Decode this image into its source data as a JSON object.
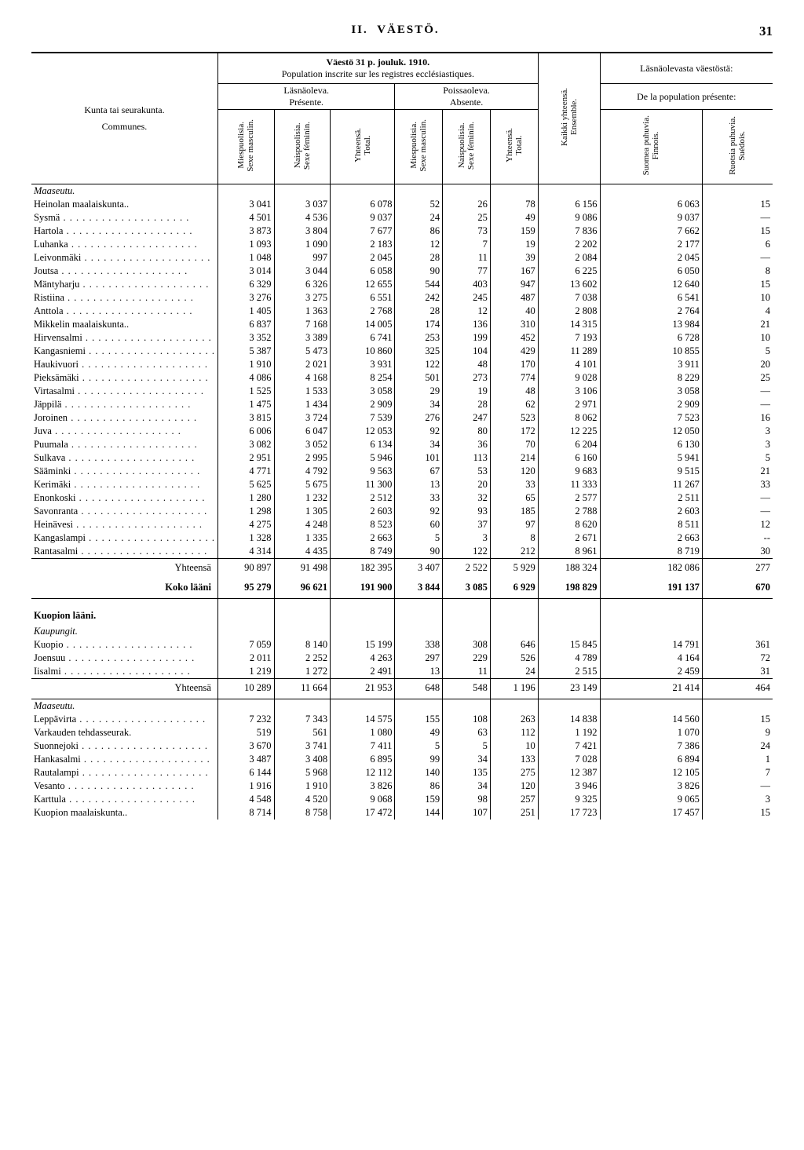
{
  "page": {
    "section": "II.",
    "title": "VÄESTÖ.",
    "number": "31"
  },
  "headers": {
    "pop_title1": "Väestö 31 p. jouluk. 1910.",
    "pop_title2": "Population inscrite sur les registres ecclésiastiques.",
    "present_fi": "Läsnäoleva.",
    "present_fr": "Présente.",
    "absent_fi": "Poissaoleva.",
    "absent_fr": "Absente.",
    "from_present_fi": "Läsnäolevasta väestöstä:",
    "from_present_fr": "De la population présente:",
    "municipality_fi": "Kunta tai seurakunta.",
    "municipality_fr": "Communes.",
    "all_fi": "Kaikki yhteensä.",
    "all_fr": "Ensemble.",
    "cols": {
      "male_fi": "Miespuolisia.",
      "male_fr": "Sexe masculin.",
      "female_fi": "Naispuolisia.",
      "female_fr": "Sexe féminin.",
      "total_fi": "Yhteensä.",
      "total_fr": "Total.",
      "finnish_fi": "Suomea puhuvia.",
      "finnish_fr": "Finnois.",
      "swedish_fi": "Ruotsia puhuvia.",
      "swedish_fr": "Suédois."
    }
  },
  "sections": [
    {
      "heading_italic": "Maaseutu.",
      "rows": [
        {
          "name": "Heinolan maalaiskunta..",
          "v": [
            "3 041",
            "3 037",
            "6 078",
            "52",
            "26",
            "78",
            "6 156",
            "6 063",
            "15"
          ]
        },
        {
          "name": "Sysmä",
          "dots": true,
          "v": [
            "4 501",
            "4 536",
            "9 037",
            "24",
            "25",
            "49",
            "9 086",
            "9 037",
            "—"
          ]
        },
        {
          "name": "Hartola",
          "dots": true,
          "v": [
            "3 873",
            "3 804",
            "7 677",
            "86",
            "73",
            "159",
            "7 836",
            "7 662",
            "15"
          ]
        },
        {
          "name": "Luhanka",
          "dots": true,
          "v": [
            "1 093",
            "1 090",
            "2 183",
            "12",
            "7",
            "19",
            "2 202",
            "2 177",
            "6"
          ]
        },
        {
          "name": "Leivonmäki",
          "dots": true,
          "v": [
            "1 048",
            "997",
            "2 045",
            "28",
            "11",
            "39",
            "2 084",
            "2 045",
            "—"
          ]
        },
        {
          "name": "Joutsa",
          "dots": true,
          "v": [
            "3 014",
            "3 044",
            "6 058",
            "90",
            "77",
            "167",
            "6 225",
            "6 050",
            "8"
          ]
        },
        {
          "name": "Mäntyharju",
          "dots": true,
          "v": [
            "6 329",
            "6 326",
            "12 655",
            "544",
            "403",
            "947",
            "13 602",
            "12 640",
            "15"
          ]
        },
        {
          "name": "Ristiina",
          "dots": true,
          "v": [
            "3 276",
            "3 275",
            "6 551",
            "242",
            "245",
            "487",
            "7 038",
            "6 541",
            "10"
          ]
        },
        {
          "name": "Anttola",
          "dots": true,
          "v": [
            "1 405",
            "1 363",
            "2 768",
            "28",
            "12",
            "40",
            "2 808",
            "2 764",
            "4"
          ]
        },
        {
          "name": "Mikkelin maalaiskunta..",
          "v": [
            "6 837",
            "7 168",
            "14 005",
            "174",
            "136",
            "310",
            "14 315",
            "13 984",
            "21"
          ]
        },
        {
          "name": "Hirvensalmi",
          "dots": true,
          "v": [
            "3 352",
            "3 389",
            "6 741",
            "253",
            "199",
            "452",
            "7 193",
            "6 728",
            "10"
          ]
        },
        {
          "name": "Kangasniemi",
          "dots": true,
          "v": [
            "5 387",
            "5 473",
            "10 860",
            "325",
            "104",
            "429",
            "11 289",
            "10 855",
            "5"
          ]
        },
        {
          "name": "Haukivuori",
          "dots": true,
          "v": [
            "1 910",
            "2 021",
            "3 931",
            "122",
            "48",
            "170",
            "4 101",
            "3 911",
            "20"
          ]
        },
        {
          "name": "Pieksämäki",
          "dots": true,
          "v": [
            "4 086",
            "4 168",
            "8 254",
            "501",
            "273",
            "774",
            "9 028",
            "8 229",
            "25"
          ]
        },
        {
          "name": "Virtasalmi",
          "dots": true,
          "v": [
            "1 525",
            "1 533",
            "3 058",
            "29",
            "19",
            "48",
            "3 106",
            "3 058",
            "—"
          ]
        },
        {
          "name": "Jäppilä",
          "dots": true,
          "v": [
            "1 475",
            "1 434",
            "2 909",
            "34",
            "28",
            "62",
            "2 971",
            "2 909",
            "—"
          ]
        },
        {
          "name": "Joroinen",
          "dots": true,
          "v": [
            "3 815",
            "3 724",
            "7 539",
            "276",
            "247",
            "523",
            "8 062",
            "7 523",
            "16"
          ]
        },
        {
          "name": "Juva",
          "dots": true,
          "v": [
            "6 006",
            "6 047",
            "12 053",
            "92",
            "80",
            "172",
            "12 225",
            "12 050",
            "3"
          ]
        },
        {
          "name": "Puumala",
          "dots": true,
          "v": [
            "3 082",
            "3 052",
            "6 134",
            "34",
            "36",
            "70",
            "6 204",
            "6 130",
            "3"
          ]
        },
        {
          "name": "Sulkava",
          "dots": true,
          "v": [
            "2 951",
            "2 995",
            "5 946",
            "101",
            "113",
            "214",
            "6 160",
            "5 941",
            "5"
          ]
        },
        {
          "name": "Sääminki",
          "dots": true,
          "v": [
            "4 771",
            "4 792",
            "9 563",
            "67",
            "53",
            "120",
            "9 683",
            "9 515",
            "21"
          ]
        },
        {
          "name": "Kerimäki",
          "dots": true,
          "v": [
            "5 625",
            "5 675",
            "11 300",
            "13",
            "20",
            "33",
            "11 333",
            "11 267",
            "33"
          ]
        },
        {
          "name": "Enonkoski",
          "dots": true,
          "v": [
            "1 280",
            "1 232",
            "2 512",
            "33",
            "32",
            "65",
            "2 577",
            "2 511",
            "—"
          ]
        },
        {
          "name": "Savonranta",
          "dots": true,
          "v": [
            "1 298",
            "1 305",
            "2 603",
            "92",
            "93",
            "185",
            "2 788",
            "2 603",
            "—"
          ]
        },
        {
          "name": "Heinävesi",
          "dots": true,
          "v": [
            "4 275",
            "4 248",
            "8 523",
            "60",
            "37",
            "97",
            "8 620",
            "8 511",
            "12"
          ]
        },
        {
          "name": "Kangaslampi",
          "dots": true,
          "v": [
            "1 328",
            "1 335",
            "2 663",
            "5",
            "3",
            "8",
            "2 671",
            "2 663",
            "--"
          ]
        },
        {
          "name": "Rantasalmi",
          "dots": true,
          "v": [
            "4 314",
            "4 435",
            "8 749",
            "90",
            "122",
            "212",
            "8 961",
            "8 719",
            "30"
          ]
        }
      ],
      "totals": [
        {
          "label": "Yhteensä",
          "v": [
            "90 897",
            "91 498",
            "182 395",
            "3 407",
            "2 522",
            "5 929",
            "188 324",
            "182 086",
            "277"
          ]
        },
        {
          "label": "Koko lääni",
          "bold": true,
          "v": [
            "95 279",
            "96 621",
            "191 900",
            "3 844",
            "3 085",
            "6 929",
            "198 829",
            "191 137",
            "670"
          ]
        }
      ]
    },
    {
      "heading_bold": "Kuopion lääni.",
      "heading_italic": "Kaupungit.",
      "rows": [
        {
          "name": "Kuopio",
          "dots": true,
          "v": [
            "7 059",
            "8 140",
            "15 199",
            "338",
            "308",
            "646",
            "15 845",
            "14 791",
            "361"
          ]
        },
        {
          "name": "Joensuu",
          "dots": true,
          "v": [
            "2 011",
            "2 252",
            "4 263",
            "297",
            "229",
            "526",
            "4 789",
            "4 164",
            "72"
          ]
        },
        {
          "name": "Iisalmi",
          "dots": true,
          "v": [
            "1 219",
            "1 272",
            "2 491",
            "13",
            "11",
            "24",
            "2 515",
            "2 459",
            "31"
          ]
        }
      ],
      "totals": [
        {
          "label": "Yhteensä",
          "v": [
            "10 289",
            "11 664",
            "21 953",
            "648",
            "548",
            "1 196",
            "23 149",
            "21 414",
            "464"
          ]
        }
      ]
    },
    {
      "heading_italic": "Maaseutu.",
      "rows": [
        {
          "name": "Leppävirta",
          "dots": true,
          "v": [
            "7 232",
            "7 343",
            "14 575",
            "155",
            "108",
            "263",
            "14 838",
            "14 560",
            "15"
          ]
        },
        {
          "name": "Varkauden tehdasseurak.",
          "v": [
            "519",
            "561",
            "1 080",
            "49",
            "63",
            "112",
            "1 192",
            "1 070",
            "9"
          ]
        },
        {
          "name": "Suonnejoki",
          "dots": true,
          "v": [
            "3 670",
            "3 741",
            "7 411",
            "5",
            "5",
            "10",
            "7 421",
            "7 386",
            "24"
          ]
        },
        {
          "name": "Hankasalmi",
          "dots": true,
          "v": [
            "3 487",
            "3 408",
            "6 895",
            "99",
            "34",
            "133",
            "7 028",
            "6 894",
            "1"
          ]
        },
        {
          "name": "Rautalampi",
          "dots": true,
          "v": [
            "6 144",
            "5 968",
            "12 112",
            "140",
            "135",
            "275",
            "12 387",
            "12 105",
            "7"
          ]
        },
        {
          "name": "Vesanto",
          "dots": true,
          "v": [
            "1 916",
            "1 910",
            "3 826",
            "86",
            "34",
            "120",
            "3 946",
            "3 826",
            "—"
          ]
        },
        {
          "name": "Karttula",
          "dots": true,
          "v": [
            "4 548",
            "4 520",
            "9 068",
            "159",
            "98",
            "257",
            "9 325",
            "9 065",
            "3"
          ]
        },
        {
          "name": "Kuopion maalaiskunta..",
          "v": [
            "8 714",
            "8 758",
            "17 472",
            "144",
            "107",
            "251",
            "17 723",
            "17 457",
            "15"
          ]
        }
      ]
    }
  ]
}
